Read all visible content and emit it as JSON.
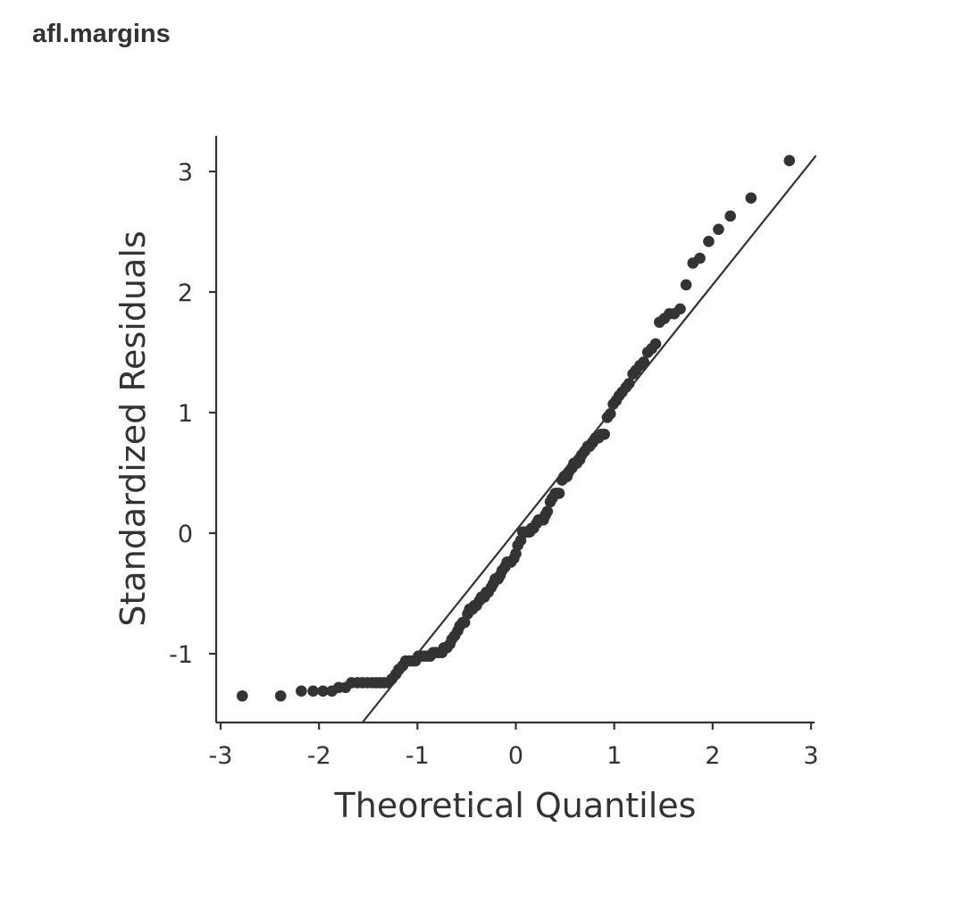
{
  "title": "afl.margins",
  "chart_data": {
    "type": "scatter",
    "xlabel": "Theoretical Quantiles",
    "ylabel": "Standardized Residuals",
    "xlim": [
      -3,
      3
    ],
    "ylim": [
      -1.55,
      3.3
    ],
    "x_ticks": [
      "-3",
      "-2",
      "-1",
      "0",
      "1",
      "2",
      "3"
    ],
    "y_ticks": [
      "-1",
      "0",
      "1",
      "2",
      "3"
    ],
    "reference_line": {
      "slope": 1.02,
      "intercept": 0.02
    },
    "colors": {
      "points": "#333333",
      "line": "#333333",
      "axes": "#333333"
    },
    "points": [
      [
        -2.78,
        -1.35
      ],
      [
        -2.39,
        -1.35
      ],
      [
        -2.18,
        -1.31
      ],
      [
        -2.06,
        -1.31
      ],
      [
        -1.96,
        -1.31
      ],
      [
        -1.87,
        -1.31
      ],
      [
        -1.8,
        -1.28
      ],
      [
        -1.73,
        -1.28
      ],
      [
        -1.67,
        -1.24
      ],
      [
        -1.61,
        -1.24
      ],
      [
        -1.56,
        -1.24
      ],
      [
        -1.51,
        -1.24
      ],
      [
        -1.46,
        -1.24
      ],
      [
        -1.42,
        -1.24
      ],
      [
        -1.38,
        -1.24
      ],
      [
        -1.34,
        -1.24
      ],
      [
        -1.3,
        -1.24
      ],
      [
        -1.26,
        -1.21
      ],
      [
        -1.22,
        -1.17
      ],
      [
        -1.19,
        -1.13
      ],
      [
        -1.15,
        -1.1
      ],
      [
        -1.12,
        -1.06
      ],
      [
        -1.08,
        -1.06
      ],
      [
        -1.05,
        -1.06
      ],
      [
        -1.02,
        -1.06
      ],
      [
        -0.99,
        -1.02
      ],
      [
        -0.96,
        -1.02
      ],
      [
        -0.93,
        -1.02
      ],
      [
        -0.9,
        -1.02
      ],
      [
        -0.87,
        -1.02
      ],
      [
        -0.84,
        -0.99
      ],
      [
        -0.81,
        -0.99
      ],
      [
        -0.78,
        -0.99
      ],
      [
        -0.75,
        -0.99
      ],
      [
        -0.73,
        -0.95
      ],
      [
        -0.7,
        -0.95
      ],
      [
        -0.67,
        -0.92
      ],
      [
        -0.65,
        -0.88
      ],
      [
        -0.62,
        -0.85
      ],
      [
        -0.59,
        -0.81
      ],
      [
        -0.57,
        -0.77
      ],
      [
        -0.54,
        -0.74
      ],
      [
        -0.52,
        -0.74
      ],
      [
        -0.49,
        -0.67
      ],
      [
        -0.47,
        -0.63
      ],
      [
        -0.44,
        -0.63
      ],
      [
        -0.42,
        -0.6
      ],
      [
        -0.4,
        -0.6
      ],
      [
        -0.37,
        -0.56
      ],
      [
        -0.35,
        -0.53
      ],
      [
        -0.32,
        -0.53
      ],
      [
        -0.3,
        -0.49
      ],
      [
        -0.28,
        -0.49
      ],
      [
        -0.25,
        -0.45
      ],
      [
        -0.23,
        -0.42
      ],
      [
        -0.21,
        -0.38
      ],
      [
        -0.18,
        -0.38
      ],
      [
        -0.16,
        -0.35
      ],
      [
        -0.14,
        -0.31
      ],
      [
        -0.11,
        -0.28
      ],
      [
        -0.09,
        -0.24
      ],
      [
        -0.07,
        -0.24
      ],
      [
        -0.05,
        -0.24
      ],
      [
        -0.02,
        -0.21
      ],
      [
        0.0,
        -0.17
      ],
      [
        0.02,
        -0.1
      ],
      [
        0.05,
        -0.06
      ],
      [
        0.07,
        0.01
      ],
      [
        0.09,
        0.01
      ],
      [
        0.11,
        0.01
      ],
      [
        0.14,
        0.01
      ],
      [
        0.16,
        0.04
      ],
      [
        0.18,
        0.04
      ],
      [
        0.21,
        0.08
      ],
      [
        0.23,
        0.11
      ],
      [
        0.25,
        0.11
      ],
      [
        0.28,
        0.11
      ],
      [
        0.3,
        0.15
      ],
      [
        0.32,
        0.18
      ],
      [
        0.35,
        0.26
      ],
      [
        0.37,
        0.29
      ],
      [
        0.4,
        0.33
      ],
      [
        0.42,
        0.33
      ],
      [
        0.44,
        0.33
      ],
      [
        0.47,
        0.44
      ],
      [
        0.49,
        0.47
      ],
      [
        0.52,
        0.47
      ],
      [
        0.54,
        0.51
      ],
      [
        0.57,
        0.54
      ],
      [
        0.59,
        0.58
      ],
      [
        0.62,
        0.58
      ],
      [
        0.65,
        0.61
      ],
      [
        0.67,
        0.65
      ],
      [
        0.7,
        0.68
      ],
      [
        0.73,
        0.72
      ],
      [
        0.75,
        0.72
      ],
      [
        0.78,
        0.75
      ],
      [
        0.81,
        0.79
      ],
      [
        0.84,
        0.79
      ],
      [
        0.87,
        0.82
      ],
      [
        0.9,
        0.82
      ],
      [
        0.93,
        0.96
      ],
      [
        0.96,
        0.99
      ],
      [
        0.99,
        1.07
      ],
      [
        1.02,
        1.1
      ],
      [
        1.05,
        1.14
      ],
      [
        1.08,
        1.17
      ],
      [
        1.12,
        1.21
      ],
      [
        1.15,
        1.24
      ],
      [
        1.19,
        1.32
      ],
      [
        1.22,
        1.35
      ],
      [
        1.26,
        1.39
      ],
      [
        1.3,
        1.42
      ],
      [
        1.34,
        1.5
      ],
      [
        1.38,
        1.53
      ],
      [
        1.42,
        1.57
      ],
      [
        1.46,
        1.75
      ],
      [
        1.51,
        1.78
      ],
      [
        1.56,
        1.82
      ],
      [
        1.61,
        1.82
      ],
      [
        1.67,
        1.86
      ],
      [
        1.73,
        2.06
      ],
      [
        1.8,
        2.24
      ],
      [
        1.87,
        2.28
      ],
      [
        1.96,
        2.42
      ],
      [
        2.06,
        2.52
      ],
      [
        2.18,
        2.63
      ],
      [
        2.39,
        2.78
      ],
      [
        2.78,
        3.09
      ]
    ]
  }
}
